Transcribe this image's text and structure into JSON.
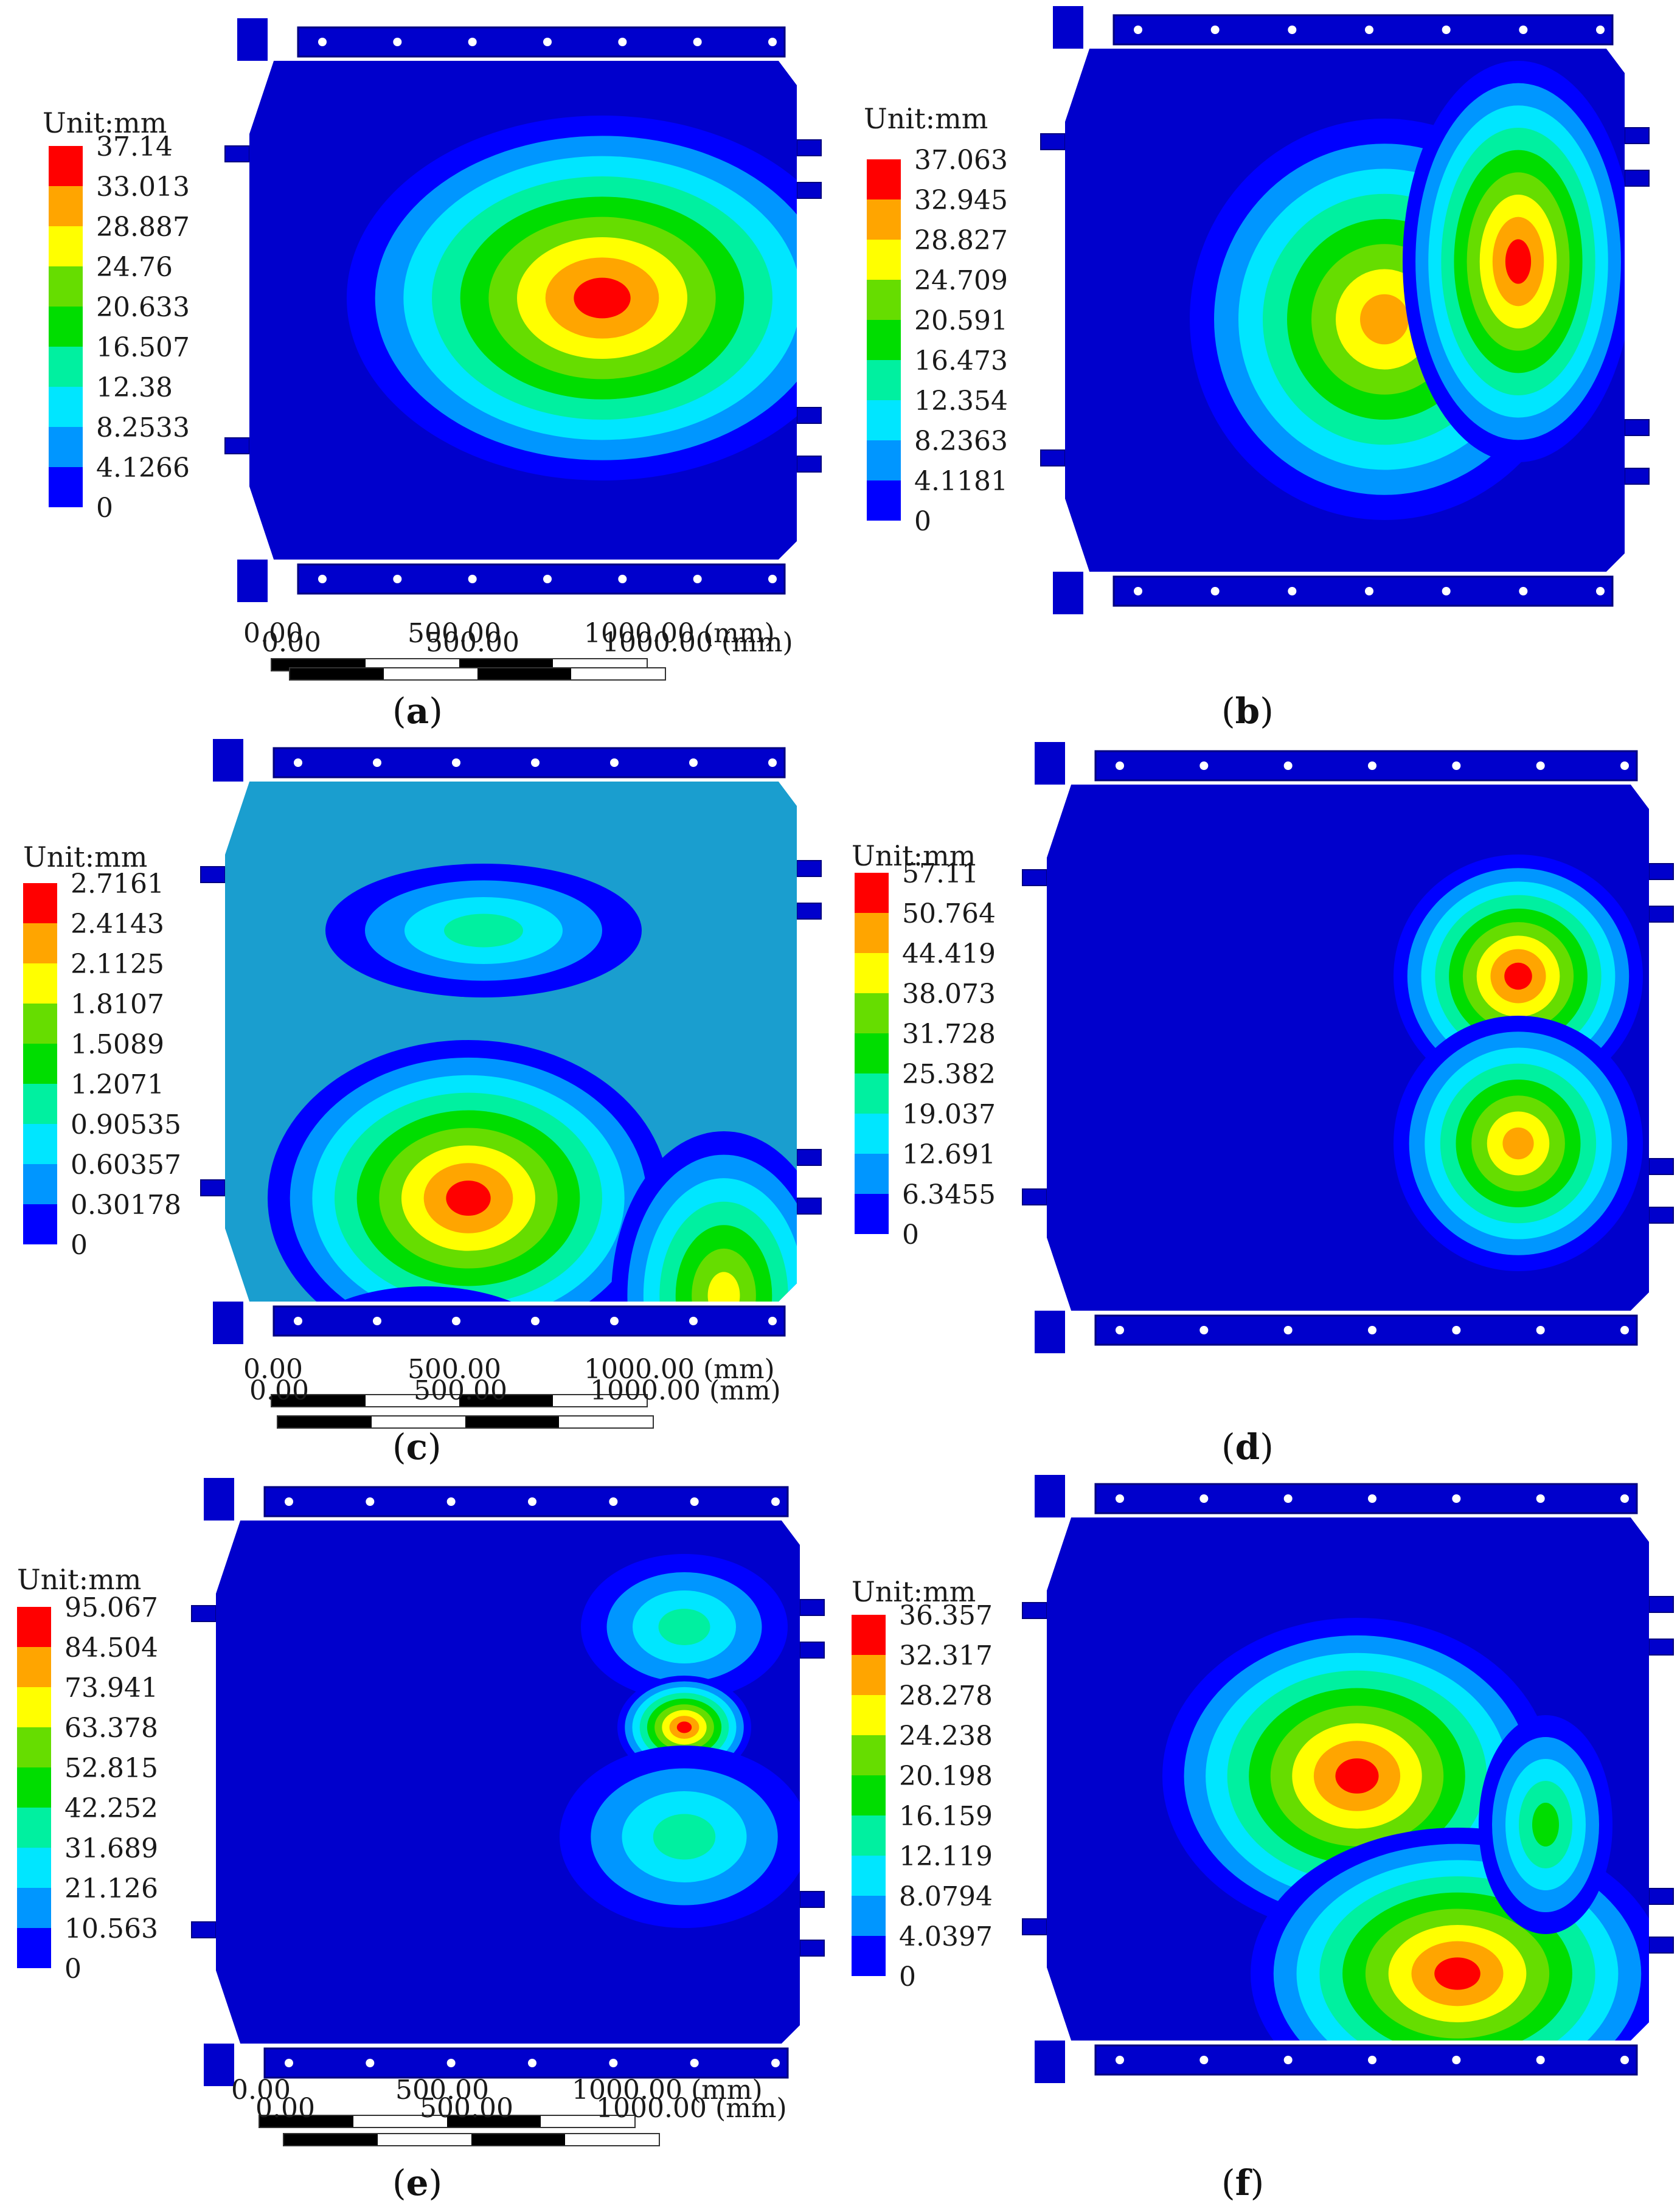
{
  "unit_label": "Unit:mm",
  "scale": {
    "labels": [
      "0.00",
      "500.00",
      "1000.00 (mm)"
    ]
  },
  "colors": {
    "background": "#0000CC",
    "bands": [
      "#0000FF",
      "#0096FF",
      "#00E6FF",
      "#00F0A0",
      "#00DD00",
      "#66DD00",
      "#FFFF00",
      "#FFA500",
      "#FF0000"
    ],
    "swatches_top_to_bottom": [
      "#FF0000",
      "#FFA500",
      "#FFFF00",
      "#66DD00",
      "#00DD00",
      "#00F0A0",
      "#00E6FF",
      "#0096FF",
      "#0000FF"
    ]
  },
  "panels": [
    {
      "id": "a",
      "caption": "a",
      "legend": [
        "37.14",
        "33.013",
        "28.887",
        "24.76",
        "20.633",
        "16.507",
        "12.38",
        "8.2533",
        "4.1266",
        "0"
      ]
    },
    {
      "id": "b",
      "caption": "b",
      "legend": [
        "37.063",
        "32.945",
        "28.827",
        "24.709",
        "20.591",
        "16.473",
        "12.354",
        "8.2363",
        "4.1181",
        "0"
      ]
    },
    {
      "id": "c",
      "caption": "c",
      "legend": [
        "2.7161",
        "2.4143",
        "2.1125",
        "1.8107",
        "1.5089",
        "1.2071",
        "0.90535",
        "0.60357",
        "0.30178",
        "0"
      ]
    },
    {
      "id": "d",
      "caption": "d",
      "legend": [
        "57.11",
        "50.764",
        "44.419",
        "38.073",
        "31.728",
        "25.382",
        "19.037",
        "12.691",
        "6.3455",
        "0"
      ]
    },
    {
      "id": "e",
      "caption": "e",
      "legend": [
        "95.067",
        "84.504",
        "73.941",
        "63.378",
        "52.815",
        "42.252",
        "31.689",
        "21.126",
        "10.563",
        "0"
      ]
    },
    {
      "id": "f",
      "caption": "f",
      "legend": [
        "36.357",
        "32.317",
        "28.278",
        "24.238",
        "20.198",
        "16.159",
        "12.119",
        "8.0794",
        "4.0397",
        "0"
      ]
    }
  ]
}
